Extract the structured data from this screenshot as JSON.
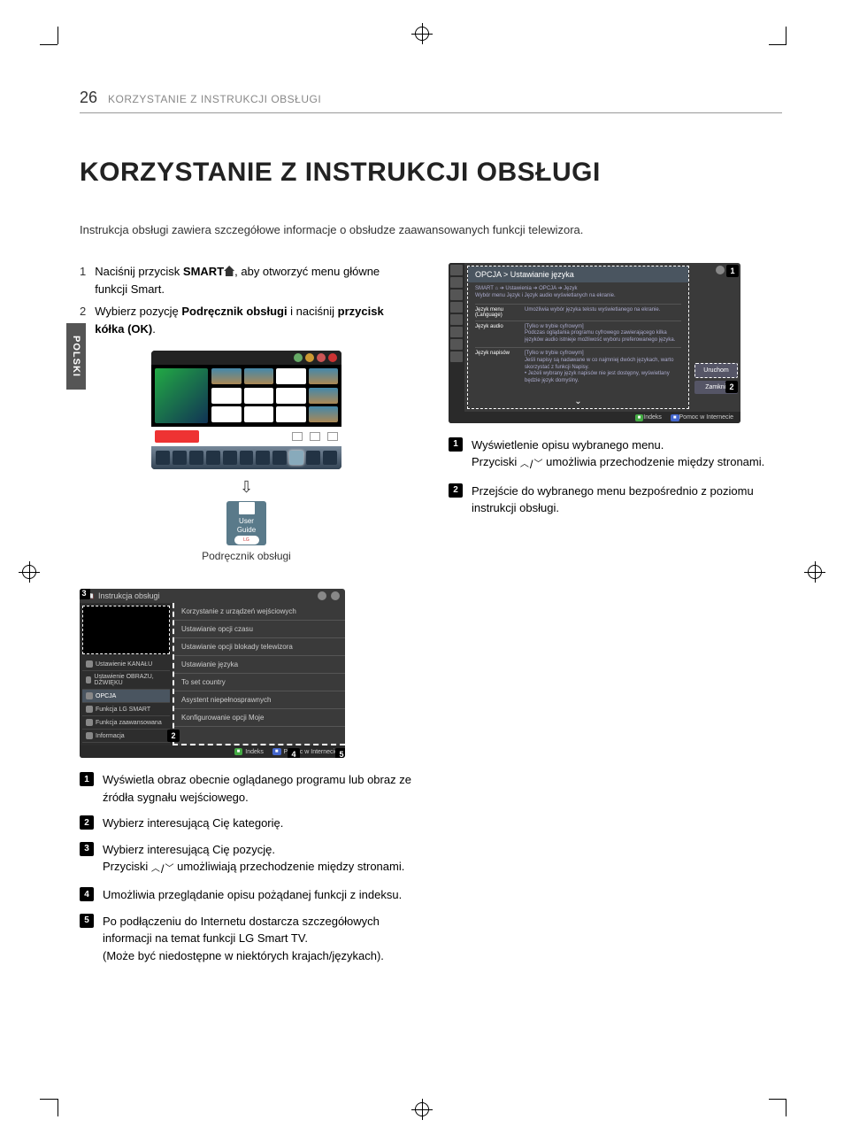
{
  "page_number": "26",
  "header_title": "KORZYSTANIE Z INSTRUKCJI OBSŁUGI",
  "side_tab": "POLSKI",
  "h1": "KORZYSTANIE Z INSTRUKCJI OBSŁUGI",
  "intro": "Instrukcja obsługi zawiera szczegółowe informacje o obsłudze zaawansowanych funkcji telewizora.",
  "steps": {
    "s1_num": "1",
    "s1_pre": "Naciśnij przycisk ",
    "s1_bold": "SMART",
    "s1_post": ", aby otworzyć menu główne funkcji Smart.",
    "s2_num": "2",
    "s2_pre": "Wybierz pozycję ",
    "s2_bold1": "Podręcznik obsługi",
    "s2_mid": " i naciśnij ",
    "s2_bold2": "przycisk kółka (OK)",
    "s2_post": "."
  },
  "guide_icon": {
    "l1": "User",
    "l2": "Guide",
    "badge": "LG"
  },
  "caption": "Podręcznik obsługi",
  "tv1": {
    "dot_colors": [
      "#6a6",
      "#c93",
      "#c55",
      "#c33"
    ]
  },
  "tv2": {
    "title": "Instrukcja obsługi",
    "side": [
      "Ustawienie KANAŁU",
      "Ustawienie OBRAZU, DŹWIĘKU",
      "OPCJA",
      "Funkcja LG SMART",
      "Funkcja zaawansowana",
      "Informacja"
    ],
    "main": [
      "Korzystanie z urządzeń wejściowych",
      "Ustawianie opcji czasu",
      "Ustawianie opcji blokady telewizora",
      "Ustawianie języka",
      "To set country",
      "Asystent niepełnosprawnych",
      "Konfigurowanie opcji Moje"
    ],
    "foot1": "Indeks",
    "foot2": "Pomoc w Internecie"
  },
  "tv3": {
    "crumb": "OPCJA > Ustawianie języka",
    "meta": "SMART ⌂ ➔ Ustawienia ➔ OPCJA ➔ Język\nWybór menu Język i Język audio wyświetlanych na ekranie.",
    "rows": [
      {
        "lab": "Język menu (Language)",
        "desc": "Umożliwia wybór języka tekstu wyświetlanego na ekranie."
      },
      {
        "lab": "Język audio",
        "desc": "[Tylko w trybie cyfrowym]\nPodczas oglądania programu cyfrowego zawierającego kilka języków audio istnieje możliwość wyboru preferowanego języka."
      },
      {
        "lab": "Język napisów",
        "desc": "[Tylko w trybie cyfrowym]\nJeśli napisy są nadawane w co najmniej dwóch językach, warto skorzystać z funkcji Napisy.\n• Jeżeli wybrany język napisów nie jest dostępny, wyświetlany będzie język domyślny."
      }
    ],
    "btn1": "Uruchom",
    "btn2": "Zamknij",
    "foot1": "Indeks",
    "foot2": "Pomoc w Internecie"
  },
  "legend_left": [
    {
      "n": "1",
      "t": "Wyświetla obraz obecnie oglądanego programu lub obraz ze źródła sygnału wejściowego."
    },
    {
      "n": "2",
      "t": "Wybierz interesującą Cię kategorię."
    },
    {
      "n": "3",
      "t": "Wybierz interesującą Cię pozycję.\nPrzyciski ︿/﹀ umożliwiają przechodzenie między stronami."
    },
    {
      "n": "4",
      "t": "Umożliwia przeglądanie opisu pożądanej funkcji z indeksu."
    },
    {
      "n": "5",
      "t": "Po podłączeniu do Internetu dostarcza szczegółowych informacji na temat funkcji LG Smart TV.\n(Może być niedostępne w niektórych krajach/językach)."
    }
  ],
  "legend_right": [
    {
      "n": "1",
      "t": "Wyświetlenie opisu wybranego menu.\nPrzyciski ︿/﹀ umożliwia przechodzenie między stronami."
    },
    {
      "n": "2",
      "t": "Przejście do wybranego menu bezpośrednio z poziomu instrukcji obsługi."
    }
  ]
}
